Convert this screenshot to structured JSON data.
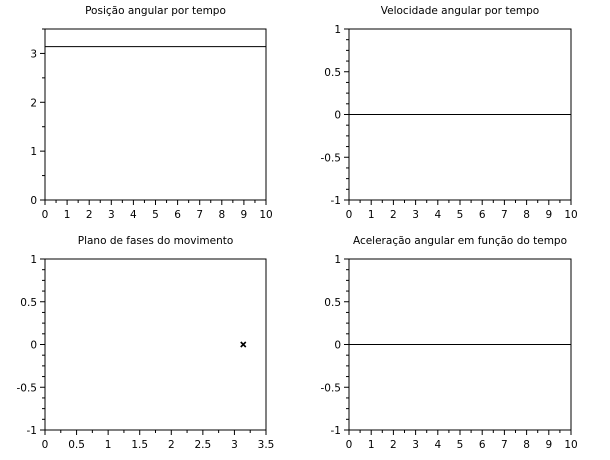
{
  "chart_data": [
    {
      "type": "line",
      "title": "Posição angular por tempo",
      "xlabel": "",
      "ylabel": "",
      "xlim": [
        0,
        10
      ],
      "ylim": [
        0,
        3.5
      ],
      "xticks": [
        0,
        1,
        2,
        3,
        4,
        5,
        6,
        7,
        8,
        9,
        10
      ],
      "xtick_labels": [
        "0",
        "1",
        "2",
        "3",
        "4",
        "5",
        "6",
        "7",
        "8",
        "9",
        "10"
      ],
      "yticks": [
        0,
        1,
        2,
        3
      ],
      "ytick_labels": [
        "0",
        "1",
        "2",
        "3"
      ],
      "series": [
        {
          "x": [
            0,
            10
          ],
          "y": [
            3.14,
            3.14
          ]
        }
      ],
      "grid": false
    },
    {
      "type": "line",
      "title": "Velocidade angular por tempo",
      "xlabel": "",
      "ylabel": "",
      "xlim": [
        0,
        10
      ],
      "ylim": [
        -1,
        1
      ],
      "xticks": [
        0,
        1,
        2,
        3,
        4,
        5,
        6,
        7,
        8,
        9,
        10
      ],
      "xtick_labels": [
        "0",
        "1",
        "2",
        "3",
        "4",
        "5",
        "6",
        "7",
        "8",
        "9",
        "10"
      ],
      "yticks": [
        -1,
        -0.5,
        0,
        0.5,
        1
      ],
      "ytick_labels": [
        "-1",
        "-0.5",
        "0",
        "0.5",
        "1"
      ],
      "series": [
        {
          "x": [
            0,
            10
          ],
          "y": [
            0,
            0
          ]
        }
      ],
      "grid": false
    },
    {
      "type": "scatter",
      "title": "Plano de fases do movimento",
      "xlabel": "",
      "ylabel": "",
      "xlim": [
        0,
        3.5
      ],
      "ylim": [
        -1,
        1
      ],
      "xticks": [
        0,
        0.5,
        1,
        1.5,
        2,
        2.5,
        3,
        3.5
      ],
      "xtick_labels": [
        "0",
        "0.5",
        "1",
        "1.5",
        "2",
        "2.5",
        "3",
        "3.5"
      ],
      "yticks": [
        -1,
        -0.5,
        0,
        0.5,
        1
      ],
      "ytick_labels": [
        "-1",
        "-0.5",
        "0",
        "0.5",
        "1"
      ],
      "series": [
        {
          "x": [
            3.14
          ],
          "y": [
            0
          ],
          "marker": "x"
        }
      ],
      "grid": false
    },
    {
      "type": "line",
      "title": "Aceleração angular em função do tempo",
      "xlabel": "",
      "ylabel": "",
      "xlim": [
        0,
        10
      ],
      "ylim": [
        -1,
        1
      ],
      "xticks": [
        0,
        1,
        2,
        3,
        4,
        5,
        6,
        7,
        8,
        9,
        10
      ],
      "xtick_labels": [
        "0",
        "1",
        "2",
        "3",
        "4",
        "5",
        "6",
        "7",
        "8",
        "9",
        "10"
      ],
      "yticks": [
        -1,
        -0.5,
        0,
        0.5,
        1
      ],
      "ytick_labels": [
        "-1",
        "-0.5",
        "0",
        "0.5",
        "1"
      ],
      "series": [
        {
          "x": [
            0,
            10
          ],
          "y": [
            0,
            0
          ]
        }
      ],
      "grid": false
    }
  ],
  "colors": {
    "axis": "#000000",
    "line": "#000000",
    "background": "#ffffff"
  }
}
